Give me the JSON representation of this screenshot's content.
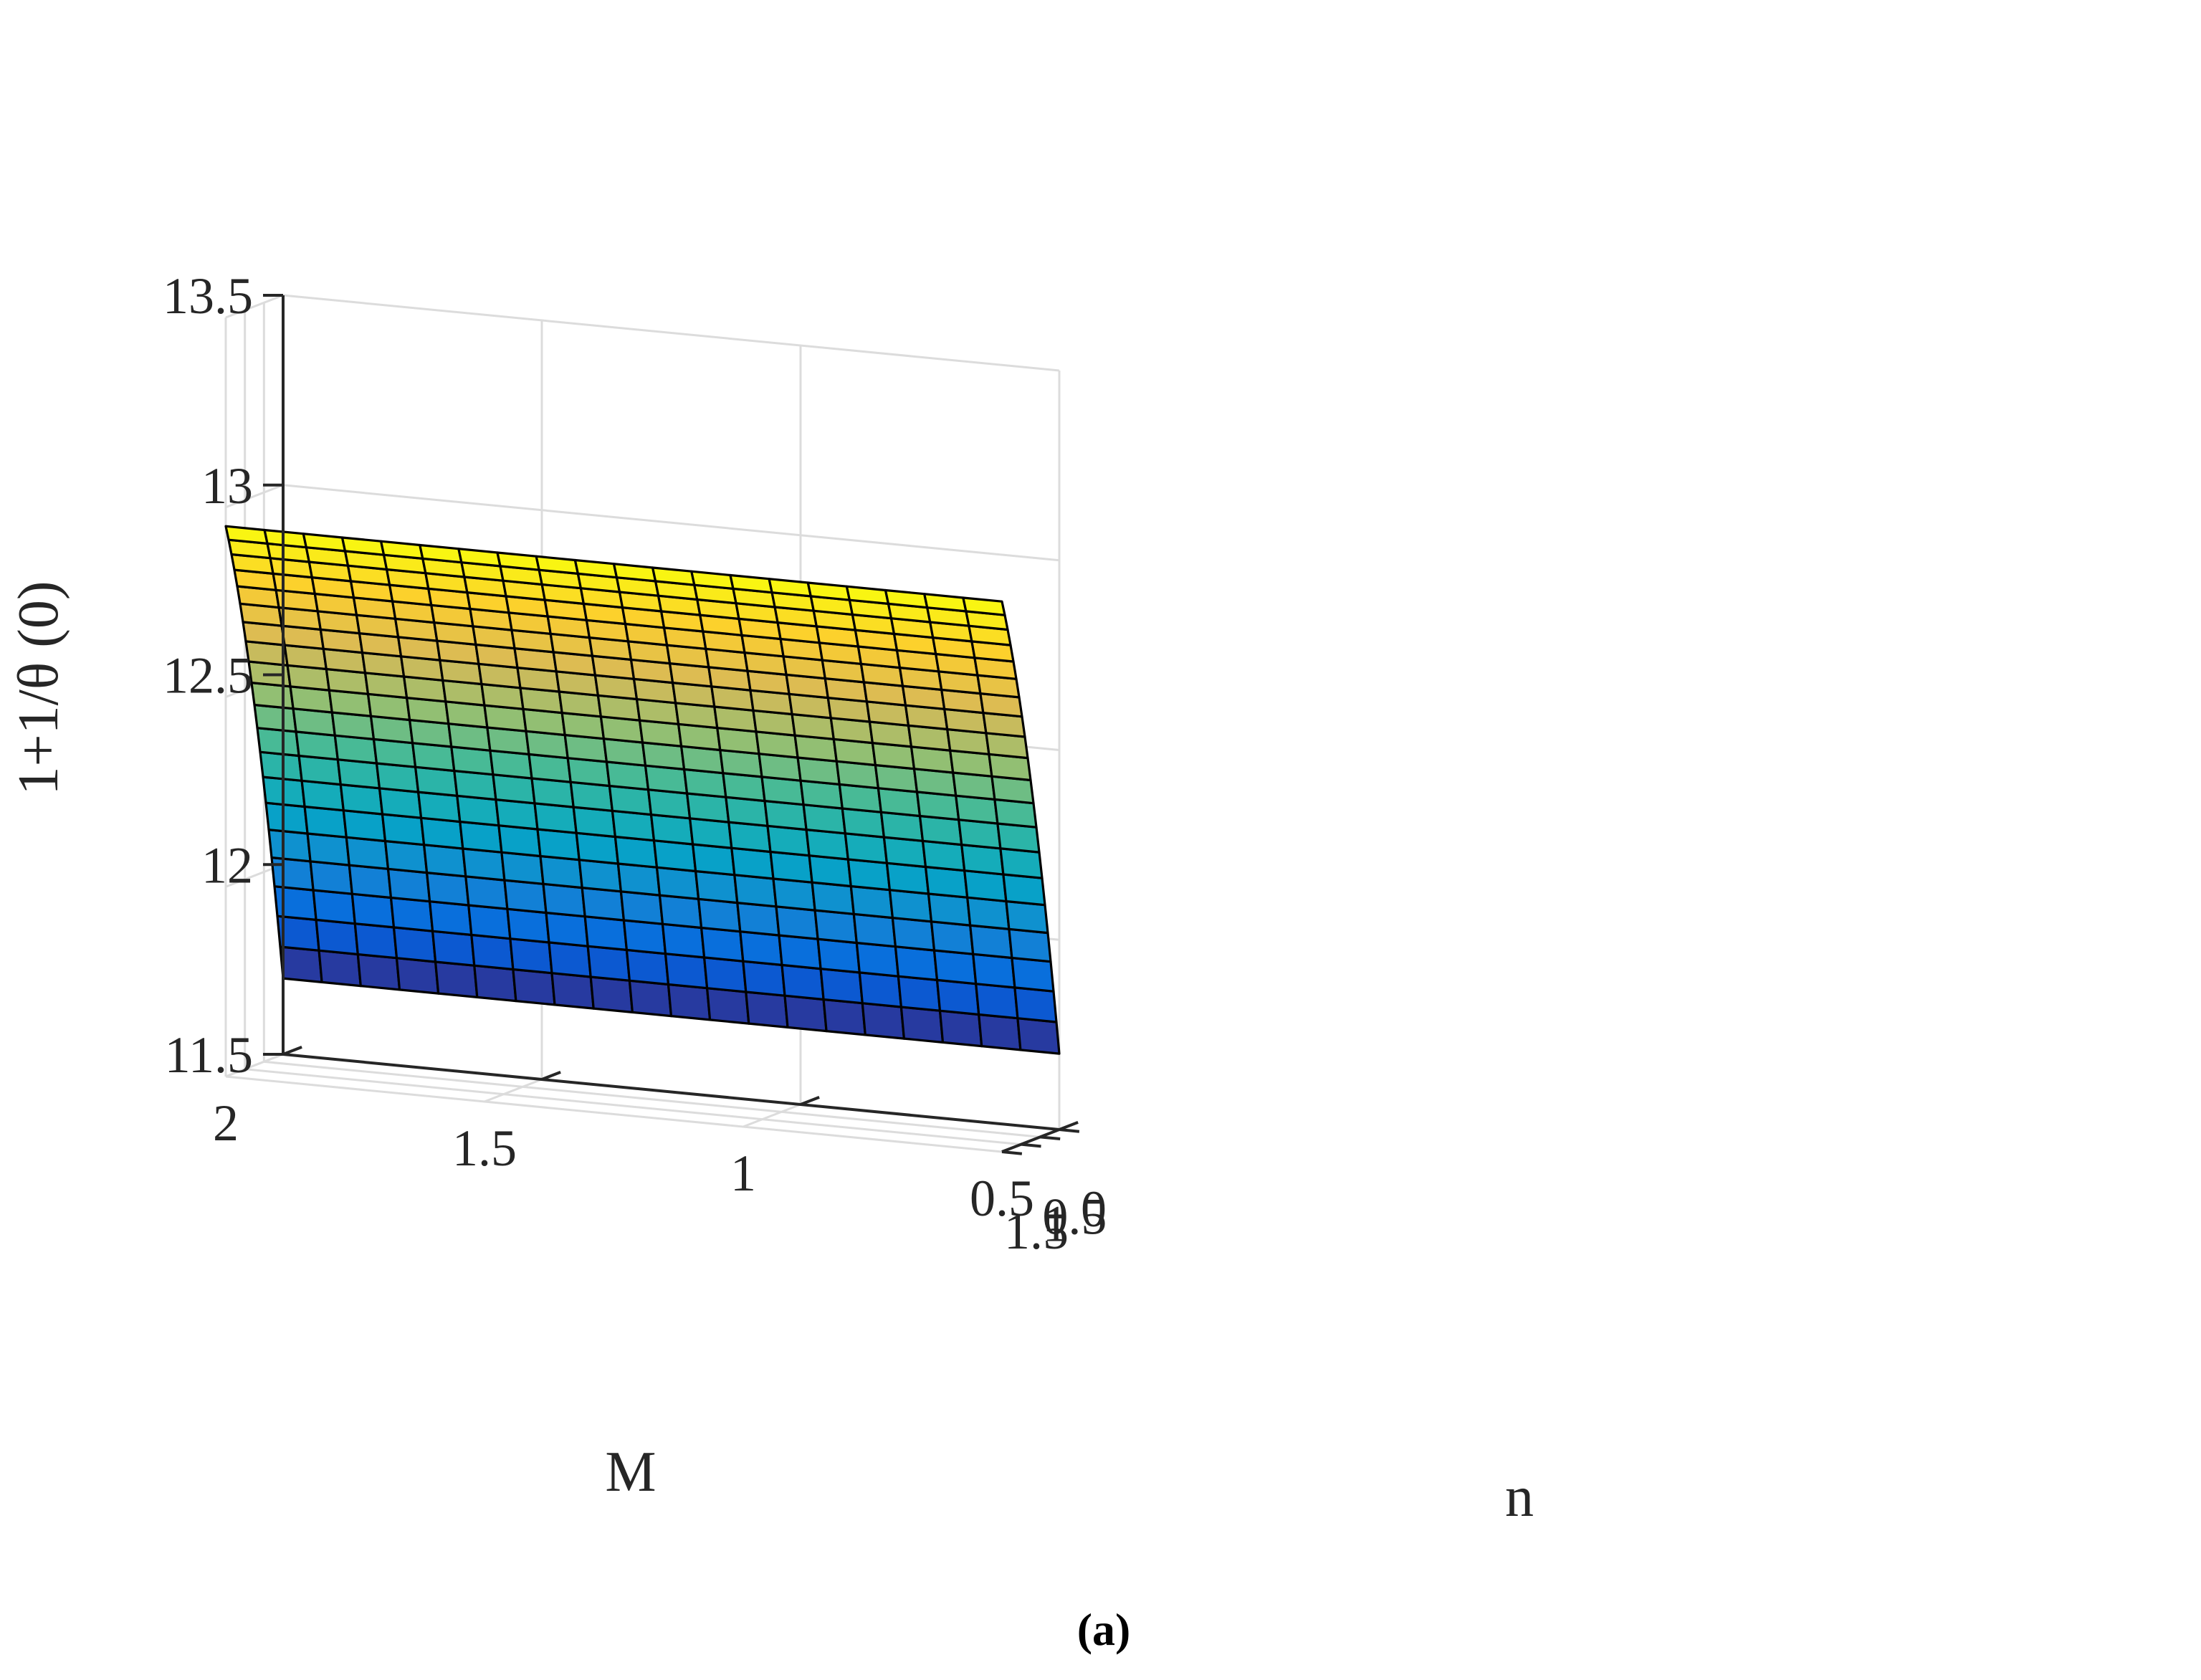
{
  "chart_data": {
    "type": "surface",
    "caption": "(a)",
    "xlabel": "n",
    "ylabel": "M",
    "zlabel": "1+1/θ (0)",
    "xlim": [
      0,
      1.5
    ],
    "ylim": [
      0.5,
      2
    ],
    "zlim": [
      11.5,
      13.5
    ],
    "xticks": [
      "0",
      "0.5",
      "1",
      "1.5"
    ],
    "yticks": [
      "0.5",
      "1",
      "1.5",
      "2"
    ],
    "zticks": [
      "11.5",
      "12",
      "12.5",
      "13",
      "13.5"
    ],
    "grid": true,
    "colormap": "parula",
    "colormap_stops": [
      "#352a87",
      "#0363e1",
      "#1485d4",
      "#06a7c6",
      "#38b99e",
      "#92bf73",
      "#d9ba56",
      "#fcce2e",
      "#f9fb0e"
    ],
    "grid_resolution": {
      "n_points": 21,
      "M_points": 21
    },
    "surface": {
      "x_range": [
        0,
        1.5
      ],
      "y_range": [
        0.5,
        2
      ],
      "z_min_at_n0": 11.7,
      "z_max_at_n1_5": 12.95,
      "variation_with_M": "negligible"
    }
  }
}
